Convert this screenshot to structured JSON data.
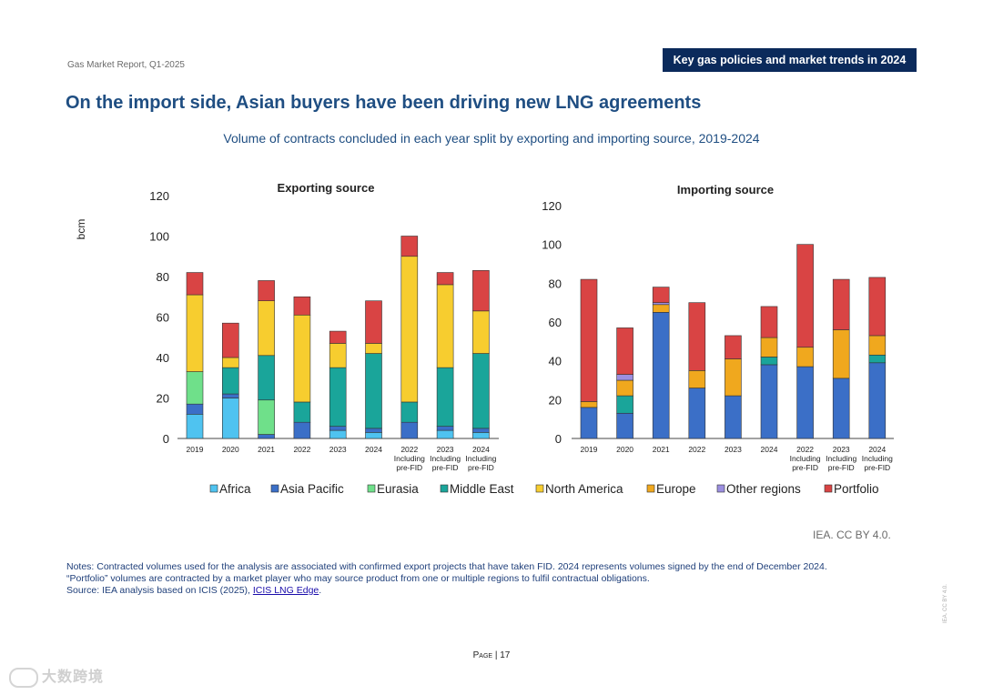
{
  "header": {
    "report": "Gas Market Report, Q1-2025",
    "section": "Key gas policies and market trends in 2024"
  },
  "title": "On the import side, Asian buyers have been driving new LNG agreements",
  "subtitle": "Volume of contracts concluded in each year split by exporting and importing source, 2019-2024",
  "colors": {
    "Africa": "#4fc3f0",
    "Asia Pacific": "#3b6fc7",
    "Eurasia": "#6fe08a",
    "Middle East": "#1aa59a",
    "North America": "#f7cd2f",
    "Europe": "#f0a81e",
    "Other regions": "#9b8fe0",
    "Portfolio": "#d94444"
  },
  "legend": [
    "Africa",
    "Asia Pacific",
    "Eurasia",
    "Middle East",
    "North America",
    "Europe",
    "Other regions",
    "Portfolio"
  ],
  "chart_data": [
    {
      "type": "bar",
      "stacked": true,
      "title": "Exporting source",
      "ylabel": "bcm",
      "ylim": [
        0,
        120
      ],
      "yticks": [
        0,
        20,
        40,
        60,
        80,
        100,
        120
      ],
      "categories": [
        "2019",
        "2020",
        "2021",
        "2022",
        "2023",
        "2024",
        "2022 Including pre-FID",
        "2023 Including pre-FID",
        "2024 Including pre-FID"
      ],
      "series": [
        {
          "name": "Africa",
          "values": [
            12,
            20,
            0,
            0,
            4,
            3,
            0,
            4,
            3
          ]
        },
        {
          "name": "Asia Pacific",
          "values": [
            5,
            2,
            2,
            8,
            2,
            2,
            8,
            2,
            2
          ]
        },
        {
          "name": "Eurasia",
          "values": [
            16,
            0,
            17,
            0,
            0,
            0,
            0,
            0,
            0
          ]
        },
        {
          "name": "Middle East",
          "values": [
            0,
            13,
            22,
            10,
            29,
            37,
            10,
            29,
            37
          ]
        },
        {
          "name": "North America",
          "values": [
            38,
            5,
            27,
            43,
            12,
            5,
            72,
            41,
            21
          ]
        },
        {
          "name": "Portfolio",
          "values": [
            11,
            17,
            10,
            9,
            6,
            21,
            10,
            6,
            20
          ]
        }
      ]
    },
    {
      "type": "bar",
      "stacked": true,
      "title": "Importing source",
      "ylabel": "",
      "ylim": [
        0,
        120
      ],
      "yticks": [
        0,
        20,
        40,
        60,
        80,
        100,
        120
      ],
      "categories": [
        "2019",
        "2020",
        "2021",
        "2022",
        "2023",
        "2024",
        "2022 Including pre-FID",
        "2023 Including pre-FID",
        "2024 Including pre-FID"
      ],
      "series": [
        {
          "name": "Asia Pacific",
          "values": [
            16,
            13,
            65,
            26,
            22,
            38,
            37,
            31,
            39
          ]
        },
        {
          "name": "Middle East",
          "values": [
            0,
            9,
            0,
            0,
            0,
            4,
            0,
            0,
            4
          ]
        },
        {
          "name": "Europe",
          "values": [
            3,
            8,
            4,
            9,
            19,
            10,
            10,
            25,
            10
          ]
        },
        {
          "name": "Other regions",
          "values": [
            0,
            3,
            1,
            0,
            0,
            0,
            0,
            0,
            0
          ]
        },
        {
          "name": "Portfolio",
          "values": [
            63,
            24,
            8,
            35,
            12,
            16,
            53,
            26,
            30
          ]
        }
      ]
    }
  ],
  "credit": "IEA. CC BY 4.0.",
  "notes": {
    "line1": "Notes: Contracted volumes used for the analysis are associated with confirmed export projects that have taken FID. 2024 represents volumes signed by the end of December 2024.",
    "line2": "“Portfolio” volumes are contracted by a market player who may source product from one or multiple regions to fulfil contractual obligations.",
    "source_prefix": "Source: IEA analysis based on ICIS (2025), ",
    "source_link": "ICIS LNG Edge",
    "source_suffix": "."
  },
  "page": {
    "label": "Page",
    "number": "17"
  },
  "side_credit": "IEA. CC BY 4.0.",
  "watermark": "大数跨境"
}
